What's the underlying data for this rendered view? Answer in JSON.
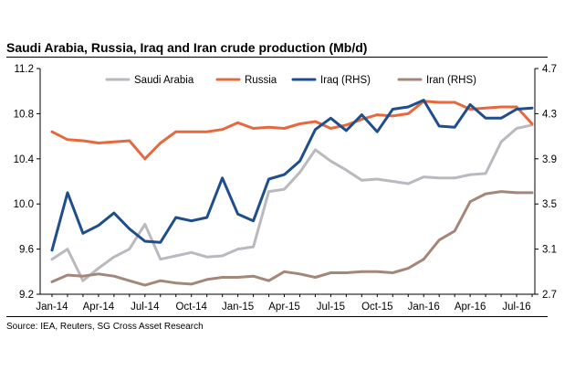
{
  "header": {
    "title": "Saudi Arabia, Russia, Iraq and Iran crude production (Mb/d)"
  },
  "footer": {
    "source": "Source: IEA, Reuters, SG Cross Asset Research"
  },
  "chart_data": {
    "type": "line",
    "title": "Saudi Arabia, Russia, Iraq and Iran crude production (Mb/d)",
    "x": [
      "Jan-14",
      "Feb-14",
      "Mar-14",
      "Apr-14",
      "May-14",
      "Jun-14",
      "Jul-14",
      "Aug-14",
      "Sep-14",
      "Oct-14",
      "Nov-14",
      "Dec-14",
      "Jan-15",
      "Feb-15",
      "Mar-15",
      "Apr-15",
      "May-15",
      "Jun-15",
      "Jul-15",
      "Aug-15",
      "Sep-15",
      "Oct-15",
      "Nov-15",
      "Dec-15",
      "Jan-16",
      "Feb-16",
      "Mar-16",
      "Apr-16",
      "May-16",
      "Jun-16",
      "Jul-16",
      "Aug-16"
    ],
    "xticks": [
      "Jan-14",
      "Apr-14",
      "Jul-14",
      "Oct-14",
      "Jan-15",
      "Apr-15",
      "Jul-15",
      "Oct-15",
      "Jan-16",
      "Apr-16",
      "Jul-16"
    ],
    "ylim_left": [
      9.2,
      11.2
    ],
    "yticks_left": [
      "11.2",
      "10.8",
      "10.4",
      "10.0",
      "9.6",
      "9.2"
    ],
    "ylim_right": [
      2.7,
      4.7
    ],
    "yticks_right": [
      "4.7",
      "4.3",
      "3.9",
      "3.5",
      "3.1",
      "2.7"
    ],
    "legend": "top",
    "grid": false,
    "series": [
      {
        "name": "Saudi Arabia",
        "axis": "left",
        "color": "#b9b9bf",
        "values": [
          9.51,
          9.6,
          9.32,
          9.43,
          9.53,
          9.6,
          9.82,
          9.51,
          9.54,
          9.57,
          9.53,
          9.54,
          9.6,
          9.62,
          10.11,
          10.13,
          10.28,
          10.48,
          10.38,
          10.3,
          10.21,
          10.22,
          10.2,
          10.18,
          10.24,
          10.23,
          10.23,
          10.26,
          10.27,
          10.55,
          10.67,
          10.7
        ]
      },
      {
        "name": "Russia",
        "axis": "left",
        "color": "#e8683e",
        "values": [
          10.64,
          10.57,
          10.56,
          10.54,
          10.55,
          10.56,
          10.4,
          10.54,
          10.64,
          10.64,
          10.64,
          10.66,
          10.72,
          10.67,
          10.68,
          10.67,
          10.71,
          10.73,
          10.67,
          10.7,
          10.75,
          10.79,
          10.78,
          10.8,
          10.91,
          10.9,
          10.9,
          10.84,
          10.85,
          10.86,
          10.86,
          10.71
        ]
      },
      {
        "name": "Iraq (RHS)",
        "axis": "right",
        "color": "#1f4e8c",
        "values": [
          3.09,
          3.6,
          3.24,
          3.31,
          3.42,
          3.28,
          3.17,
          3.16,
          3.38,
          3.35,
          3.38,
          3.73,
          3.41,
          3.35,
          3.72,
          3.76,
          3.88,
          4.16,
          4.26,
          4.15,
          4.29,
          4.14,
          4.34,
          4.36,
          4.42,
          4.19,
          4.18,
          4.38,
          4.26,
          4.26,
          4.34,
          4.35
        ]
      },
      {
        "name": "Iran (RHS)",
        "axis": "right",
        "color": "#a5877a",
        "values": [
          2.81,
          2.87,
          2.86,
          2.88,
          2.86,
          2.82,
          2.78,
          2.82,
          2.8,
          2.79,
          2.83,
          2.85,
          2.85,
          2.86,
          2.82,
          2.9,
          2.88,
          2.85,
          2.89,
          2.89,
          2.9,
          2.9,
          2.89,
          2.93,
          3.01,
          3.18,
          3.26,
          3.52,
          3.59,
          3.61,
          3.6,
          3.6
        ]
      }
    ]
  }
}
